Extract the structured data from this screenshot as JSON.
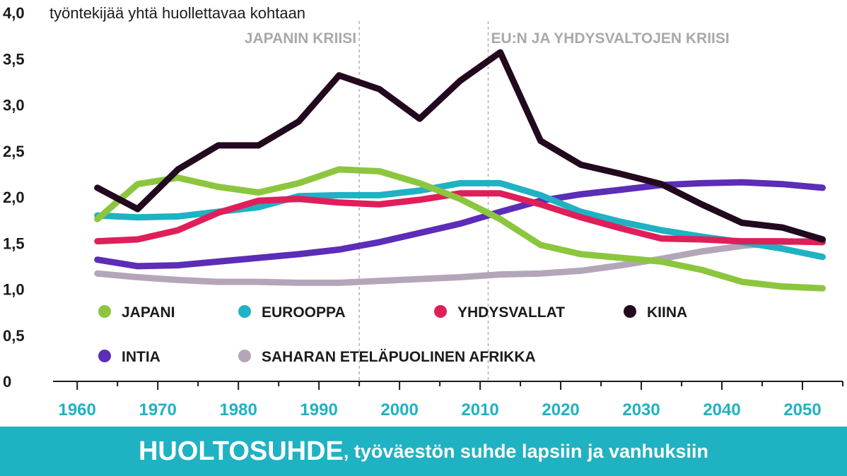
{
  "chart_data": {
    "type": "line",
    "ylabel": "työntekijää yhtä huollettavaa kohtaan",
    "ylim": [
      0,
      4.0
    ],
    "xlim": [
      1957,
      2055
    ],
    "y_ticks": [
      "0",
      "0,5",
      "1,0",
      "1,5",
      "2,0",
      "2,5",
      "3,0",
      "3,5",
      "4,0"
    ],
    "y_tick_values": [
      0,
      0.5,
      1.0,
      1.5,
      2.0,
      2.5,
      3.0,
      3.5,
      4.0
    ],
    "x_ticks": [
      "1960",
      "1970",
      "1980",
      "1990",
      "2000",
      "2010",
      "2020",
      "2030",
      "2040",
      "2050"
    ],
    "x_tick_values": [
      1960,
      1970,
      1980,
      1990,
      2000,
      2010,
      2020,
      2030,
      2040,
      2050
    ],
    "annotations": [
      {
        "text": "JAPANIN KRIISI",
        "x": 1995
      },
      {
        "text": "EU:N JA YHDYSVALTOJEN KRIISI",
        "x": 2011
      }
    ],
    "x": [
      1962.5,
      1967.5,
      1972.5,
      1977.5,
      1982.5,
      1987.5,
      1992.5,
      1997.5,
      2002.5,
      2007.5,
      2012.5,
      2017.5,
      2022.5,
      2027.5,
      2032.5,
      2037.5,
      2042.5,
      2047.5,
      2052.5
    ],
    "series": [
      {
        "name": "SAHARAN ETELÄPUOLINEN AFRIKKA",
        "color": "#b4a6b8",
        "values": [
          1.17,
          1.13,
          1.1,
          1.08,
          1.08,
          1.07,
          1.07,
          1.09,
          1.11,
          1.13,
          1.16,
          1.17,
          1.2,
          1.26,
          1.33,
          1.41,
          1.47,
          1.51,
          1.53
        ]
      },
      {
        "name": "INTIA",
        "color": "#5c2db6",
        "values": [
          1.32,
          1.25,
          1.26,
          1.3,
          1.34,
          1.38,
          1.43,
          1.51,
          1.61,
          1.71,
          1.84,
          1.96,
          2.03,
          2.08,
          2.13,
          2.15,
          2.16,
          2.14,
          2.1
        ]
      },
      {
        "name": "EUROOPPA",
        "color": "#1fb2c3",
        "values": [
          1.8,
          1.78,
          1.79,
          1.84,
          1.89,
          2.01,
          2.02,
          2.02,
          2.07,
          2.15,
          2.15,
          2.02,
          1.84,
          1.73,
          1.64,
          1.57,
          1.51,
          1.44,
          1.35
        ]
      },
      {
        "name": "YHDYSVALLAT",
        "color": "#df1f59",
        "values": [
          1.52,
          1.54,
          1.64,
          1.83,
          1.96,
          1.98,
          1.94,
          1.92,
          1.97,
          2.04,
          2.04,
          1.92,
          1.78,
          1.66,
          1.55,
          1.54,
          1.52,
          1.52,
          1.51
        ]
      },
      {
        "name": "JAPANI",
        "color": "#8cc63f",
        "values": [
          1.76,
          2.14,
          2.21,
          2.11,
          2.05,
          2.15,
          2.3,
          2.28,
          2.15,
          1.98,
          1.76,
          1.48,
          1.38,
          1.34,
          1.3,
          1.21,
          1.08,
          1.03,
          1.01
        ]
      },
      {
        "name": "KIINA",
        "color": "#22091d",
        "values": [
          2.1,
          1.87,
          2.3,
          2.56,
          2.56,
          2.82,
          3.32,
          3.17,
          2.85,
          3.26,
          3.57,
          2.61,
          2.35,
          2.25,
          2.14,
          1.92,
          1.72,
          1.67,
          1.54
        ]
      }
    ]
  },
  "legend": [
    {
      "label": "JAPANI",
      "color": "#8cc63f"
    },
    {
      "label": "EUROOPPA",
      "color": "#1fb2c3"
    },
    {
      "label": "YHDYSVALLAT",
      "color": "#df1f59"
    },
    {
      "label": "KIINA",
      "color": "#22091d"
    },
    {
      "label": "INTIA",
      "color": "#5c2db6"
    },
    {
      "label": "SAHARAN ETELÄPUOLINEN AFRIKKA",
      "color": "#b4a6b8"
    }
  ],
  "footer": {
    "title": "HUOLTOSUHDE",
    "subtitle": ", työväestön suhde lapsiin ja vanhuksiin",
    "background": "#1fb2c3"
  }
}
